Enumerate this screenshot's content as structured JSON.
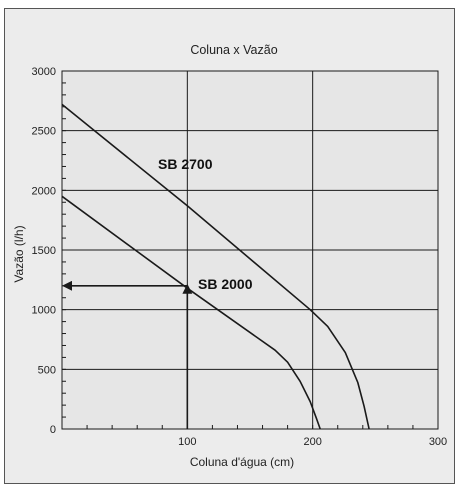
{
  "chart_data": {
    "type": "line",
    "title": "Coluna x Vazão",
    "xlabel": "Coluna d'água  (cm)",
    "ylabel": "Vazão (l/h)",
    "xlim": [
      0,
      300
    ],
    "ylim": [
      0,
      3000
    ],
    "x_ticks": [
      100,
      200,
      300
    ],
    "y_ticks": [
      0,
      500,
      1000,
      1500,
      2000,
      2500,
      3000
    ],
    "grid": true,
    "series": [
      {
        "name": "SB 2700",
        "points": [
          [
            0,
            2720
          ],
          [
            100,
            1870
          ],
          [
            198,
            1000
          ],
          [
            212,
            860
          ],
          [
            226,
            640
          ],
          [
            236,
            390
          ],
          [
            241,
            190
          ],
          [
            245,
            0
          ]
        ]
      },
      {
        "name": "SB 2000",
        "points": [
          [
            0,
            1950
          ],
          [
            100,
            1180
          ],
          [
            170,
            660
          ],
          [
            180,
            560
          ],
          [
            190,
            400
          ],
          [
            198,
            230
          ],
          [
            203,
            90
          ],
          [
            206,
            0
          ]
        ]
      }
    ],
    "annotations": [
      {
        "type": "arrow",
        "from": [
          100,
          0
        ],
        "to": [
          100,
          1200
        ]
      },
      {
        "type": "arrow",
        "from": [
          100,
          1200
        ],
        "to": [
          0,
          1200
        ]
      }
    ]
  },
  "colors": {
    "background": "#ececec",
    "line": "#1a1a1a",
    "grid": "#1a1a1a"
  }
}
